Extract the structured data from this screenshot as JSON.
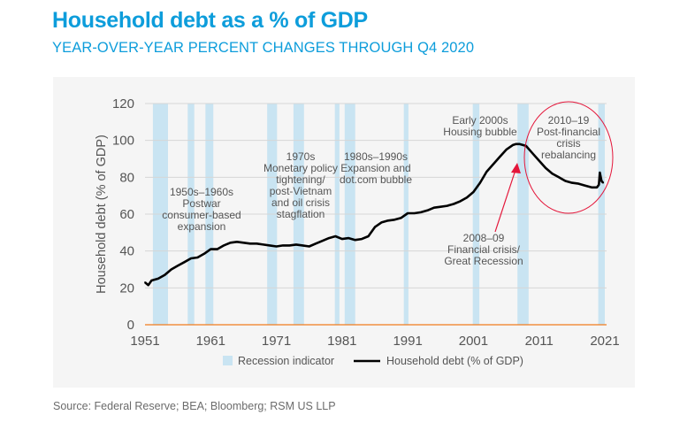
{
  "header": {
    "title": "Household debt as a % of GDP",
    "subtitle": "YEAR-OVER-YEAR PERCENT CHANGES THROUGH Q4 2020"
  },
  "source": "Source: Federal Reserve; BEA; Bloomberg; RSM US LLP",
  "colors": {
    "title": "#0d9ddb",
    "recession": "#c9e4f2",
    "line": "#000000",
    "baseline": "#f07c1e",
    "annotation_red": "#e4163a",
    "grid": "#d6d6d6",
    "panel_bg": "#f5f5f5"
  },
  "chart_data": {
    "type": "line",
    "ylabel": "Household debt (% of GDP)",
    "xlabel": "",
    "xlim": [
      1951,
      2021
    ],
    "ylim": [
      0,
      120
    ],
    "grid": true,
    "x_ticks": [
      "1951",
      "1961",
      "1971",
      "1981",
      "1991",
      "2001",
      "2011",
      "2021"
    ],
    "y_ticks": [
      "0",
      "20",
      "40",
      "60",
      "80",
      "100",
      "120"
    ],
    "legend_position": "bottom",
    "legend": [
      "Recession indicator",
      "Household debt (% of GDP)"
    ],
    "recessions": [
      [
        1952.2,
        1954.5
      ],
      [
        1957.5,
        1958.5
      ],
      [
        1960.2,
        1961.4
      ],
      [
        1969.6,
        1971.1
      ],
      [
        1973.6,
        1975.2
      ],
      [
        1979.9,
        1980.6
      ],
      [
        1981.4,
        1983.0
      ],
      [
        1990.4,
        1991.1
      ],
      [
        2000.9,
        2001.9
      ],
      [
        2007.7,
        2009.4
      ],
      [
        2020.0,
        2021.0
      ]
    ],
    "series": [
      {
        "name": "Household debt (% of GDP)",
        "x": [
          1951,
          1951.5,
          1952,
          1953,
          1954,
          1955,
          1956,
          1957,
          1958,
          1959,
          1960,
          1961,
          1962,
          1963,
          1964,
          1965,
          1966,
          1967,
          1968,
          1969,
          1970,
          1971,
          1972,
          1973,
          1974,
          1975,
          1976,
          1977,
          1978,
          1979,
          1980,
          1981,
          1982,
          1983,
          1984,
          1985,
          1986,
          1987,
          1988,
          1989,
          1990,
          1991,
          1992,
          1993,
          1994,
          1995,
          1996,
          1997,
          1998,
          1999,
          2000,
          2001,
          2002,
          2003,
          2004,
          2005,
          2006,
          2007,
          2007.5,
          2008,
          2009,
          2010,
          2011,
          2012,
          2013,
          2014,
          2015,
          2016,
          2017,
          2018,
          2019,
          2019.8,
          2020.1,
          2020.25,
          2020.5,
          2020.75
        ],
        "values": [
          23,
          21.5,
          24,
          25,
          27,
          30,
          32,
          34,
          36,
          36.5,
          38.5,
          41,
          41,
          43,
          44.5,
          45,
          44.5,
          44,
          44,
          43.5,
          43,
          42.5,
          43,
          43,
          43.5,
          43,
          42.5,
          44,
          45.5,
          47,
          48,
          46.5,
          47,
          46,
          46.5,
          48,
          53,
          55.5,
          56.5,
          57,
          58,
          60.5,
          60.5,
          61,
          62,
          63.5,
          64,
          64.5,
          65.5,
          67,
          69,
          72,
          77,
          83,
          87,
          91,
          95,
          97.5,
          98,
          98,
          97,
          93,
          89,
          85,
          82,
          80,
          78,
          77,
          76.5,
          75.5,
          74.5,
          74.5,
          76,
          82.5,
          78,
          77
        ]
      }
    ],
    "annotations": [
      {
        "id": "postwar",
        "lines": [
          "1950s–1960s",
          "Postwar",
          "consumer-based",
          "expansion"
        ]
      },
      {
        "id": "seventies",
        "lines": [
          "1970s",
          "Monetary policy",
          "tightening/",
          "post-Vietnam",
          "and oil crisis",
          "stagflation"
        ]
      },
      {
        "id": "eighties",
        "lines": [
          "1980s–1990s",
          "Expansion and",
          "dot.com bubble"
        ]
      },
      {
        "id": "housing",
        "lines": [
          "Early 2000s",
          "Housing bubble"
        ]
      },
      {
        "id": "gfc",
        "lines": [
          "2008–09",
          "Financial crisis/",
          "Great Recession"
        ]
      },
      {
        "id": "rebalancing",
        "lines": [
          "2010–19",
          "Post-financial",
          "crisis",
          "rebalancing"
        ]
      }
    ]
  }
}
